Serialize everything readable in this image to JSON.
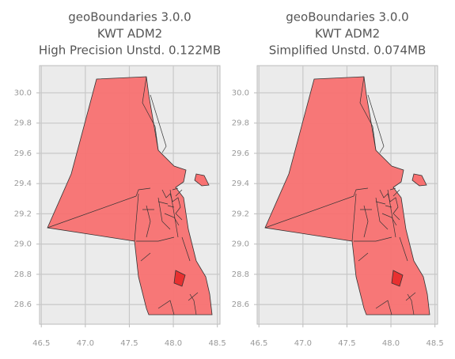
{
  "chart_data": [
    {
      "type": "map",
      "title": [
        "geoBoundaries 3.0.0",
        "KWT ADM2",
        "High Precision Unstd. 0.122MB"
      ],
      "xlim": [
        46.48,
        48.53
      ],
      "ylim": [
        28.47,
        30.18
      ],
      "xticks": [
        46.5,
        {
          "value": 47,
          "label": "47.0"
        },
        47.5,
        {
          "value": 48,
          "label": "48.0"
        },
        48.5
      ],
      "yticks": [
        28.6,
        28.8,
        {
          "value": 29,
          "label": "29.0"
        },
        29.2,
        29.4,
        29.6,
        29.8,
        {
          "value": 30,
          "label": "30.0"
        }
      ],
      "grid": true,
      "color": "#f87171"
    },
    {
      "type": "map",
      "title": [
        "geoBoundaries 3.0.0",
        "KWT ADM2",
        "Simplified Unstd. 0.074MB"
      ],
      "xlim": [
        46.48,
        48.53
      ],
      "ylim": [
        28.47,
        30.18
      ],
      "xticks": [
        46.5,
        {
          "value": 47,
          "label": "47.0"
        },
        47.5,
        {
          "value": 48,
          "label": "48.0"
        },
        48.5
      ],
      "yticks": [
        28.6,
        28.8,
        {
          "value": 29,
          "label": "29.0"
        },
        29.2,
        29.4,
        29.6,
        29.8,
        {
          "value": 30,
          "label": "30.0"
        }
      ],
      "grid": true,
      "color": "#f87171"
    }
  ]
}
